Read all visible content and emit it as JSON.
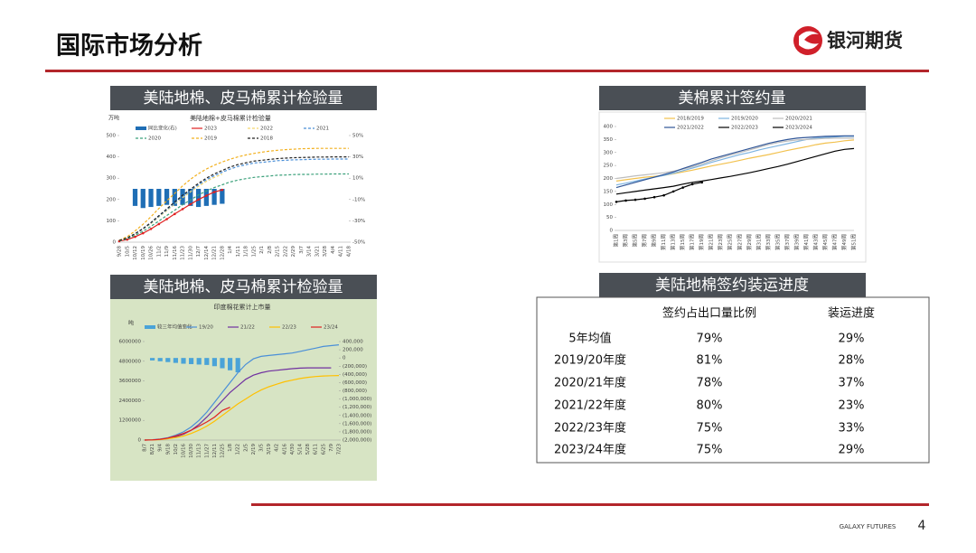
{
  "header": {
    "title": "国际市场分析",
    "logo": "银河期货"
  },
  "panels": [
    "美陆地棉、皮马棉累计检验量",
    "美棉累计签约量",
    "美陆地棉、皮马棉累计检验量",
    "美陆地棉签约装运进度"
  ],
  "charts": [
    {
      "type": "line",
      "title": "美陆地棉+皮马棉累计检验量",
      "y_label": "万吨",
      "categories": [
        "9/28",
        "10/5",
        "10/12",
        "10/19",
        "10/26",
        "11/2",
        "11/9",
        "11/16",
        "11/23",
        "11/30",
        "12/7",
        "12/14",
        "12/21",
        "12/28",
        "1/4",
        "1/11",
        "1/18",
        "1/25",
        "2/1",
        "2/8",
        "2/15",
        "2/22",
        "2/29",
        "3/7",
        "3/14",
        "3/21",
        "3/28",
        "4/4",
        "4/11",
        "4/18"
      ],
      "ylim": [
        0,
        500
      ],
      "yticks": [
        0,
        100,
        200,
        300,
        400,
        500
      ],
      "y2lim": [
        -50,
        50
      ],
      "y2ticks": [
        {
          "value": -50,
          "label": "-50%"
        },
        {
          "value": -30,
          "label": "-30%"
        },
        {
          "value": -10,
          "label": "-10%"
        },
        {
          "value": 10,
          "label": "10%"
        },
        {
          "value": 30,
          "label": "30%"
        },
        {
          "value": 50,
          "label": "50%"
        }
      ],
      "series": [
        {
          "name": "同比变化(右)",
          "color": "#1f6eb5",
          "kind": "bar",
          "axis": "y2",
          "values": [
            null,
            null,
            -16,
            -18,
            -17,
            -16,
            -15,
            -16,
            -15,
            -16,
            -17,
            -16,
            -15,
            -14,
            null,
            null,
            null,
            null,
            null,
            null,
            null,
            null,
            null,
            null,
            null,
            null,
            null,
            null,
            null,
            null
          ]
        },
        {
          "name": "2023",
          "color": "#e02020",
          "style": "solid",
          "marker": true,
          "values": [
            5,
            12,
            25,
            42,
            62,
            85,
            108,
            132,
            155,
            178,
            200,
            218,
            235,
            245,
            null,
            null,
            null,
            null,
            null,
            null,
            null,
            null,
            null,
            null,
            null,
            null,
            null,
            null,
            null,
            null
          ]
        },
        {
          "name": "2022",
          "color": "#f5d76e",
          "style": "dashed",
          "values": [
            7,
            19,
            38,
            61,
            87,
            118,
            148,
            179,
            209,
            236,
            262,
            285,
            304,
            319,
            null,
            null,
            null,
            null,
            null,
            null,
            null,
            null,
            null,
            null,
            null,
            null,
            null,
            null,
            null,
            null
          ]
        },
        {
          "name": "2021",
          "color": "#4a8fd8",
          "style": "dashed",
          "values": [
            8,
            20,
            39,
            62,
            90,
            121,
            152,
            183,
            215,
            242,
            269,
            293,
            312,
            328,
            343,
            355,
            363,
            371,
            374,
            378,
            382,
            384,
            386,
            387,
            388,
            389,
            389,
            390,
            390,
            390
          ]
        },
        {
          "name": "2020",
          "color": "#3aa07a",
          "style": "dashed",
          "values": [
            6,
            16,
            32,
            51,
            74,
            99,
            125,
            150,
            176,
            198,
            221,
            240,
            256,
            269,
            282,
            291,
            298,
            304,
            307,
            310,
            314,
            315,
            317,
            318,
            318,
            319,
            319,
            320,
            320,
            320
          ]
        },
        {
          "name": "2019",
          "color": "#f2b01e",
          "style": "dashed",
          "values": [
            9,
            26,
            53,
            84,
            119,
            158,
            194,
            229,
            264,
            295,
            321,
            343,
            361,
            376,
            389,
            400,
            409,
            416,
            422,
            427,
            431,
            434,
            436,
            438,
            439,
            440,
            440,
            440,
            440,
            440
          ]
        },
        {
          "name": "2018",
          "color": "#222222",
          "style": "dashed",
          "values": [
            8,
            20,
            40,
            64,
            92,
            124,
            156,
            188,
            220,
            248,
            276,
            300,
            320,
            336,
            352,
            364,
            372,
            380,
            384,
            388,
            392,
            394,
            396,
            397,
            398,
            399,
            399,
            400,
            400,
            400
          ]
        }
      ]
    },
    {
      "type": "line",
      "categories": [
        "第1周",
        "第3周",
        "第5周",
        "第7周",
        "第9周",
        "第11周",
        "第13周",
        "第15周",
        "第17周",
        "第19周",
        "第21周",
        "第23周",
        "第25周",
        "第27周",
        "第29周",
        "第31周",
        "第33周",
        "第35周",
        "第37周",
        "第39周",
        "第41周",
        "第43周",
        "第45周",
        "第47周",
        "第49周",
        "第51周"
      ],
      "ylim": [
        0,
        400
      ],
      "yticks": [
        0,
        50,
        100,
        150,
        200,
        250,
        300,
        350,
        400
      ],
      "series": [
        {
          "name": "2018/2019",
          "color": "#f2c14e",
          "style": "solid",
          "values": [
            190,
            195,
            200,
            205,
            208,
            212,
            218,
            225,
            232,
            240,
            248,
            255,
            262,
            270,
            278,
            285,
            292,
            300,
            308,
            315,
            322,
            330,
            336,
            340,
            345,
            348
          ]
        },
        {
          "name": "2019/2020",
          "color": "#7db3e0",
          "style": "solid",
          "values": [
            175,
            182,
            190,
            198,
            205,
            212,
            220,
            230,
            240,
            250,
            262,
            272,
            282,
            292,
            300,
            310,
            318,
            326,
            334,
            342,
            350,
            355,
            358,
            360,
            362,
            362
          ]
        },
        {
          "name": "2020/2021",
          "color": "#bdbdbd",
          "style": "solid",
          "values": [
            200,
            205,
            210,
            214,
            218,
            222,
            228,
            236,
            245,
            256,
            268,
            280,
            290,
            300,
            310,
            320,
            330,
            338,
            344,
            348,
            350,
            352,
            354,
            355,
            355,
            355
          ]
        },
        {
          "name": "2021/2022",
          "color": "#2f5597",
          "style": "solid",
          "values": [
            165,
            175,
            185,
            195,
            205,
            215,
            225,
            238,
            250,
            262,
            275,
            285,
            295,
            305,
            315,
            325,
            335,
            343,
            350,
            355,
            358,
            360,
            362,
            363,
            364,
            364
          ]
        },
        {
          "name": "2022/2023",
          "color": "#000000",
          "style": "solid",
          "values": [
            140,
            145,
            150,
            155,
            160,
            165,
            170,
            178,
            185,
            190,
            196,
            202,
            208,
            215,
            222,
            230,
            238,
            246,
            255,
            265,
            275,
            285,
            295,
            305,
            312,
            315
          ]
        },
        {
          "name": "2023/2024",
          "color": "#000000",
          "style": "solid",
          "marker": true,
          "values": [
            110,
            115,
            118,
            122,
            128,
            135,
            150,
            165,
            178,
            185,
            null,
            null,
            null,
            null,
            null,
            null,
            null,
            null,
            null,
            null,
            null,
            null,
            null,
            null,
            null,
            null
          ]
        }
      ]
    },
    {
      "type": "line",
      "title": "印度棉花累计上市量",
      "y_label": "吨",
      "categories": [
        "8/7",
        "8/21",
        "9/4",
        "9/18",
        "10/2",
        "10/16",
        "10/30",
        "11/13",
        "11/27",
        "12/11",
        "12/25",
        "1/8",
        "1/22",
        "2/5",
        "2/19",
        "3/5",
        "3/19",
        "4/2",
        "4/16",
        "4/30",
        "5/14",
        "5/28",
        "6/11",
        "6/25",
        "7/9",
        "7/23"
      ],
      "ylim": [
        0,
        6000000
      ],
      "yticks": [
        0,
        1200000,
        2400000,
        3600000,
        4800000,
        6000000
      ],
      "y2lim": [
        -2000000,
        400000
      ],
      "y2ticks": [
        {
          "value": 400000,
          "label": "400,000"
        },
        {
          "value": 200000,
          "label": "200,000"
        },
        0,
        {
          "value": -200000,
          "label": "(200,000)"
        },
        {
          "value": -400000,
          "label": "(400,000)"
        },
        {
          "value": -600000,
          "label": "(600,000)"
        },
        {
          "value": -800000,
          "label": "(800,000)"
        },
        {
          "value": -1000000,
          "label": "(1,000,000)"
        },
        {
          "value": -1200000,
          "label": "(1,200,000)"
        },
        {
          "value": -1400000,
          "label": "(1,400,000)"
        },
        {
          "value": -1600000,
          "label": "(1,600,000)"
        },
        {
          "value": -1800000,
          "label": "(1,800,000)"
        },
        {
          "value": -2000000,
          "label": "(2,000,000)"
        }
      ],
      "series": [
        {
          "name": "较三年均值变化",
          "color": "#4aa3d8",
          "kind": "bar",
          "axis": "y2",
          "values": [
            null,
            -60000,
            -80000,
            -100000,
            -120000,
            -140000,
            -150000,
            -160000,
            -170000,
            -200000,
            -250000,
            -300000,
            -350000,
            null,
            null,
            null,
            null,
            null,
            null,
            null,
            null,
            null,
            null,
            null,
            null,
            null
          ]
        },
        {
          "name": "19/20",
          "color": "#4a8fd8",
          "style": "solid",
          "values": [
            0,
            20000,
            60000,
            150000,
            300000,
            500000,
            800000,
            1200000,
            1700000,
            2300000,
            2900000,
            3500000,
            4100000,
            4600000,
            4950000,
            5100000,
            5150000,
            5200000,
            5250000,
            5300000,
            5400000,
            5500000,
            5600000,
            5700000,
            5750000,
            5800000
          ]
        },
        {
          "name": "21/22",
          "color": "#7030a0",
          "style": "solid",
          "values": [
            0,
            10000,
            40000,
            100000,
            200000,
            350000,
            600000,
            950000,
            1400000,
            1900000,
            2400000,
            2900000,
            3300000,
            3700000,
            3950000,
            4100000,
            4200000,
            4250000,
            4300000,
            4350000,
            4380000,
            4400000,
            4400000,
            4400000,
            4400000,
            null
          ]
        },
        {
          "name": "22/23",
          "color": "#ffc000",
          "style": "solid",
          "values": [
            0,
            10000,
            30000,
            80000,
            150000,
            250000,
            400000,
            600000,
            850000,
            1150000,
            1500000,
            1850000,
            2200000,
            2500000,
            2800000,
            3050000,
            3250000,
            3400000,
            3550000,
            3650000,
            3750000,
            3820000,
            3870000,
            3900000,
            3920000,
            3930000
          ]
        },
        {
          "name": "23/24",
          "color": "#e02020",
          "style": "solid",
          "values": [
            0,
            10000,
            50000,
            120000,
            250000,
            400000,
            600000,
            850000,
            1100000,
            1400000,
            1800000,
            2000000,
            null,
            null,
            null,
            null,
            null,
            null,
            null,
            null,
            null,
            null,
            null,
            null,
            null,
            null
          ]
        }
      ]
    }
  ],
  "table": {
    "header": [
      "签约占出口量比例",
      "装运进度"
    ],
    "rows": [
      [
        "5年均值",
        "79%",
        "29%"
      ],
      [
        "2019/20年度",
        "81%",
        "28%"
      ],
      [
        "2020/21年度",
        "78%",
        "37%"
      ],
      [
        "2021/22年度",
        "80%",
        "23%"
      ],
      [
        "2022/23年度",
        "75%",
        "33%"
      ],
      [
        "2023/24年度",
        "75%",
        "29%"
      ]
    ]
  },
  "footer": {
    "brand": "GALAXY FUTURES",
    "page": "4"
  }
}
